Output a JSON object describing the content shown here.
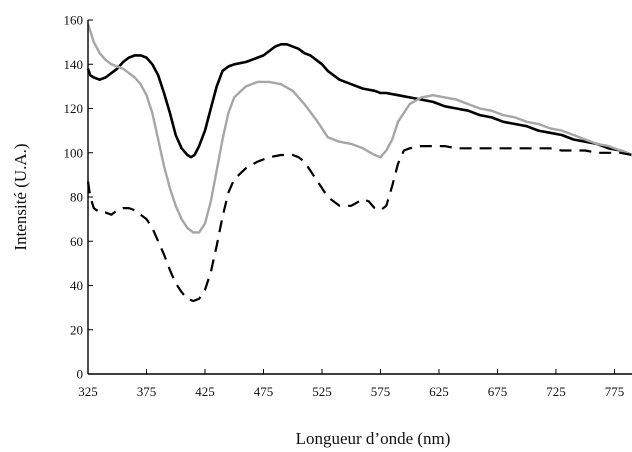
{
  "chart_data": {
    "type": "line",
    "title": "",
    "xlabel": "Longueur d’onde (nm)",
    "ylabel": "Intensité (U.A.)",
    "xlim": [
      325,
      790
    ],
    "ylim": [
      0,
      160
    ],
    "xticks": [
      325,
      375,
      425,
      475,
      525,
      575,
      625,
      675,
      725,
      775
    ],
    "yticks": [
      0,
      20,
      40,
      60,
      80,
      100,
      120,
      140,
      160
    ],
    "grid": false,
    "legend": "none",
    "series": [
      {
        "style": "solid",
        "color": "#000000",
        "x": [
          325,
          327,
          330,
          335,
          340,
          345,
          350,
          355,
          360,
          365,
          370,
          375,
          380,
          385,
          390,
          395,
          400,
          405,
          410,
          413,
          416,
          420,
          425,
          430,
          435,
          440,
          445,
          450,
          460,
          470,
          475,
          480,
          485,
          490,
          495,
          500,
          505,
          510,
          515,
          520,
          525,
          530,
          540,
          550,
          560,
          570,
          575,
          580,
          590,
          600,
          610,
          620,
          630,
          640,
          650,
          660,
          670,
          680,
          690,
          700,
          710,
          720,
          730,
          740,
          750,
          760,
          770,
          780,
          790
        ],
        "y": [
          138,
          135,
          134,
          133,
          134,
          136,
          138,
          141,
          143,
          144,
          144,
          143,
          140,
          135,
          127,
          118,
          108,
          102,
          99,
          98,
          99,
          103,
          110,
          120,
          130,
          137,
          139,
          140,
          141,
          143,
          144,
          146,
          148,
          149,
          149,
          148,
          147,
          145,
          144,
          142,
          140,
          137,
          133,
          131,
          129,
          128,
          127,
          127,
          126,
          125,
          124,
          123,
          121,
          120,
          119,
          117,
          116,
          114,
          113,
          112,
          110,
          109,
          108,
          106,
          105,
          104,
          102,
          101,
          99
        ]
      },
      {
        "style": "solid",
        "color": "#a6a6a6",
        "x": [
          325,
          327,
          330,
          335,
          340,
          345,
          350,
          355,
          360,
          365,
          370,
          375,
          380,
          385,
          390,
          395,
          400,
          405,
          410,
          415,
          420,
          425,
          430,
          435,
          440,
          445,
          450,
          460,
          470,
          480,
          490,
          500,
          510,
          520,
          525,
          530,
          540,
          550,
          560,
          570,
          575,
          580,
          585,
          590,
          600,
          610,
          620,
          630,
          640,
          650,
          660,
          670,
          680,
          690,
          700,
          710,
          720,
          730,
          740,
          750,
          760,
          770,
          780,
          790
        ],
        "y": [
          158,
          155,
          150,
          145,
          142,
          140,
          139,
          138,
          136,
          134,
          131,
          126,
          118,
          106,
          94,
          84,
          76,
          70,
          66,
          64,
          64,
          68,
          78,
          92,
          106,
          118,
          125,
          130,
          132,
          132,
          131,
          128,
          122,
          115,
          111,
          107,
          105,
          104,
          102,
          99,
          98,
          101,
          106,
          114,
          122,
          125,
          126,
          125,
          124,
          122,
          120,
          119,
          117,
          116,
          114,
          113,
          111,
          110,
          108,
          106,
          104,
          103,
          101,
          99
        ]
      },
      {
        "style": "dashed",
        "color": "#000000",
        "x": [
          325,
          327,
          330,
          335,
          340,
          345,
          350,
          355,
          360,
          365,
          370,
          375,
          380,
          385,
          390,
          395,
          400,
          405,
          410,
          415,
          420,
          425,
          430,
          435,
          440,
          445,
          450,
          460,
          470,
          480,
          490,
          500,
          505,
          510,
          520,
          530,
          540,
          550,
          560,
          565,
          570,
          575,
          580,
          585,
          590,
          595,
          600,
          610,
          620,
          630,
          640,
          650,
          660,
          670,
          680,
          690,
          700,
          710,
          720,
          730,
          740,
          750,
          760,
          770,
          780,
          790
        ],
        "y": [
          87,
          80,
          75,
          73,
          73,
          72,
          74,
          75,
          75,
          74,
          72,
          70,
          66,
          60,
          54,
          47,
          41,
          37,
          34,
          33,
          34,
          38,
          46,
          58,
          71,
          82,
          88,
          93,
          96,
          98,
          99,
          99,
          98,
          96,
          88,
          80,
          76,
          76,
          79,
          78,
          75,
          74,
          76,
          85,
          95,
          101,
          102,
          103,
          103,
          103,
          102,
          102,
          102,
          102,
          102,
          102,
          102,
          102,
          102,
          101,
          101,
          101,
          100,
          100,
          100,
          99
        ]
      }
    ]
  }
}
